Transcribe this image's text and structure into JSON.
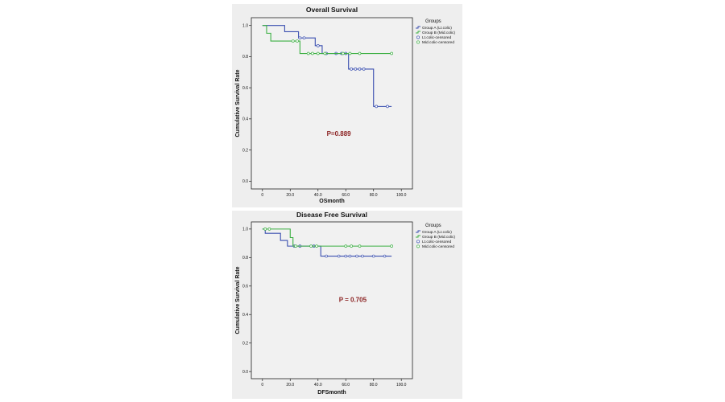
{
  "colors": {
    "group_a": "#3a4fb0",
    "group_b": "#3cb043",
    "pvalue": "#8b2222"
  },
  "legend": {
    "title": "Groups",
    "items": [
      "Group A (Lt.colic)",
      "Group B (Mid.colic)",
      "Lt.colic-censored",
      "Mid.colic-censored"
    ]
  },
  "chart_data": [
    {
      "type": "line",
      "step": true,
      "title": "Overall Survival",
      "xlabel": "OSmonth",
      "ylabel": "Cumulative Survival Rate",
      "xlim": [
        -8,
        108
      ],
      "ylim": [
        -0.05,
        1.05
      ],
      "xticks": [
        0,
        20,
        40,
        60,
        80,
        100
      ],
      "xtick_labels": [
        "0",
        "20.0",
        "40.0",
        "60.0",
        "80.0",
        "100.0"
      ],
      "yticks": [
        0,
        0.2,
        0.4,
        0.6,
        0.8,
        1.0
      ],
      "ytick_labels": [
        "0.0",
        "0.2",
        "0.4",
        "0.6",
        "0.8",
        "1.0"
      ],
      "annotation": "P=0.889",
      "legend_position": "right",
      "series": [
        {
          "name": "Group A (Lt.colic)",
          "color_key": "group_a",
          "steps": [
            [
              0,
              1.0
            ],
            [
              16,
              0.96
            ],
            [
              26,
              0.92
            ],
            [
              38,
              0.87
            ],
            [
              43,
              0.82
            ],
            [
              62,
              0.72
            ],
            [
              80,
              0.48
            ],
            [
              93,
              0.48
            ]
          ],
          "censored": [
            [
              27,
              0.92
            ],
            [
              30,
              0.92
            ],
            [
              40,
              0.87
            ],
            [
              46,
              0.82
            ],
            [
              53,
              0.82
            ],
            [
              57,
              0.82
            ],
            [
              60,
              0.82
            ],
            [
              64,
              0.72
            ],
            [
              67,
              0.72
            ],
            [
              70,
              0.72
            ],
            [
              73,
              0.72
            ],
            [
              82,
              0.48
            ],
            [
              90,
              0.48
            ]
          ]
        },
        {
          "name": "Group B (Mid.colic)",
          "color_key": "group_b",
          "steps": [
            [
              0,
              1.0
            ],
            [
              3,
              0.95
            ],
            [
              6,
              0.9
            ],
            [
              22,
              0.9
            ],
            [
              27,
              0.82
            ],
            [
              93,
              0.82
            ]
          ],
          "censored": [
            [
              22,
              0.9
            ],
            [
              25,
              0.9
            ],
            [
              33,
              0.82
            ],
            [
              36,
              0.82
            ],
            [
              40,
              0.82
            ],
            [
              45,
              0.82
            ],
            [
              58,
              0.82
            ],
            [
              63,
              0.82
            ],
            [
              70,
              0.82
            ],
            [
              93,
              0.82
            ]
          ]
        }
      ]
    },
    {
      "type": "line",
      "step": true,
      "title": "Disease Free Survival",
      "xlabel": "DFSmonth",
      "ylabel": "Cumulative Survival Rate",
      "xlim": [
        -8,
        108
      ],
      "ylim": [
        -0.05,
        1.05
      ],
      "xticks": [
        0,
        20,
        40,
        60,
        80,
        100
      ],
      "xtick_labels": [
        "0",
        "20.0",
        "40.0",
        "60.0",
        "80.0",
        "100.0"
      ],
      "yticks": [
        0,
        0.2,
        0.4,
        0.6,
        0.8,
        1.0
      ],
      "ytick_labels": [
        "0.0",
        "0.2",
        "0.4",
        "0.6",
        "0.8",
        "1.0"
      ],
      "annotation": "P = 0.705",
      "legend_position": "right",
      "series": [
        {
          "name": "Group A (Lt.colic)",
          "color_key": "group_a",
          "steps": [
            [
              0,
              1.0
            ],
            [
              2,
              0.97
            ],
            [
              13,
              0.92
            ],
            [
              18,
              0.88
            ],
            [
              42,
              0.81
            ],
            [
              93,
              0.81
            ]
          ],
          "censored": [
            [
              23,
              0.88
            ],
            [
              27,
              0.88
            ],
            [
              37,
              0.88
            ],
            [
              46,
              0.81
            ],
            [
              55,
              0.81
            ],
            [
              60,
              0.81
            ],
            [
              63,
              0.81
            ],
            [
              68,
              0.81
            ],
            [
              72,
              0.81
            ],
            [
              80,
              0.81
            ],
            [
              88,
              0.81
            ]
          ]
        },
        {
          "name": "Group B (Mid.colic)",
          "color_key": "group_b",
          "steps": [
            [
              0,
              1.0
            ],
            [
              20,
              0.94
            ],
            [
              22,
              0.88
            ],
            [
              93,
              0.88
            ]
          ],
          "censored": [
            [
              2,
              1.0
            ],
            [
              5,
              1.0
            ],
            [
              24,
              0.88
            ],
            [
              35,
              0.88
            ],
            [
              39,
              0.88
            ],
            [
              60,
              0.88
            ],
            [
              64,
              0.88
            ],
            [
              70,
              0.88
            ],
            [
              93,
              0.88
            ]
          ]
        }
      ]
    }
  ]
}
